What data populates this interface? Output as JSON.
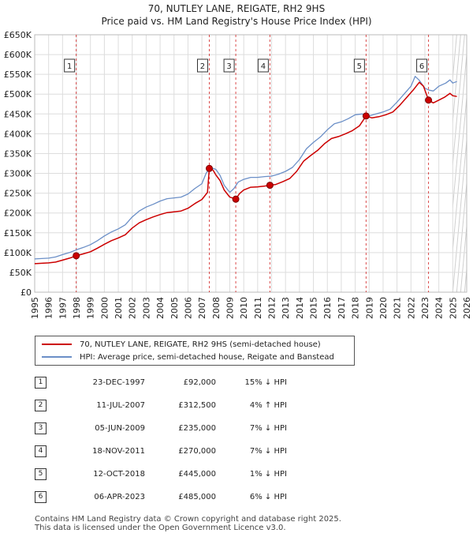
{
  "title_line1": "70, NUTLEY LANE, REIGATE, RH2 9HS",
  "title_line2": "Price paid vs. HM Land Registry's House Price Index (HPI)",
  "legend": {
    "property_label": "70, NUTLEY LANE, REIGATE, RH2 9HS (semi-detached house)",
    "hpi_label": "HPI: Average price, semi-detached house, Reigate and Banstead"
  },
  "colors": {
    "property": "#cc0000",
    "hpi": "#6b8fc7",
    "grid": "#dddddd",
    "marker_line": "#cc0000"
  },
  "sales": [
    {
      "num": "1",
      "date": "23-DEC-1997",
      "price": "£92,000",
      "hpi": "15% ↓ HPI"
    },
    {
      "num": "2",
      "date": "11-JUL-2007",
      "price": "£312,500",
      "hpi": "4% ↑ HPI"
    },
    {
      "num": "3",
      "date": "05-JUN-2009",
      "price": "£235,000",
      "hpi": "7% ↓ HPI"
    },
    {
      "num": "4",
      "date": "18-NOV-2011",
      "price": "£270,000",
      "hpi": "7% ↓ HPI"
    },
    {
      "num": "5",
      "date": "12-OCT-2018",
      "price": "£445,000",
      "hpi": "1% ↓ HPI"
    },
    {
      "num": "6",
      "date": "06-APR-2023",
      "price": "£485,000",
      "hpi": "6% ↓ HPI"
    }
  ],
  "footer": {
    "line1": "Contains HM Land Registry data © Crown copyright and database right 2025.",
    "line2": "This data is licensed under the Open Government Licence v3.0."
  },
  "chart_data": {
    "type": "line",
    "xlim": [
      1995,
      2026
    ],
    "ylim": [
      0,
      650000
    ],
    "y_ticks": [
      0,
      50000,
      100000,
      150000,
      200000,
      250000,
      300000,
      350000,
      400000,
      450000,
      500000,
      550000,
      600000,
      650000
    ],
    "y_tick_labels": [
      "£0",
      "£50K",
      "£100K",
      "£150K",
      "£200K",
      "£250K",
      "£300K",
      "£350K",
      "£400K",
      "£450K",
      "£500K",
      "£550K",
      "£600K",
      "£650K"
    ],
    "x_ticks": [
      "1995",
      "1996",
      "1997",
      "1998",
      "1999",
      "2000",
      "2001",
      "2002",
      "2003",
      "2004",
      "2005",
      "2006",
      "2007",
      "2008",
      "2009",
      "2010",
      "2011",
      "2012",
      "2013",
      "2014",
      "2015",
      "2016",
      "2017",
      "2018",
      "2019",
      "2020",
      "2021",
      "2022",
      "2023",
      "2024",
      "2025",
      "2026"
    ],
    "forecast_start": 2025.0,
    "series": [
      {
        "name": "HPI: Average price, semi-detached house, Reigate and Banstead",
        "x": [
          1995,
          1995.5,
          1996,
          1996.5,
          1997,
          1997.5,
          1998,
          1998.5,
          1999,
          1999.5,
          2000,
          2000.5,
          2001,
          2001.5,
          2002,
          2002.5,
          2003,
          2003.5,
          2004,
          2004.5,
          2005,
          2005.5,
          2006,
          2006.5,
          2007,
          2007.3,
          2007.6,
          2008,
          2008.3,
          2008.6,
          2009,
          2009.3,
          2009.6,
          2010,
          2010.5,
          2011,
          2011.5,
          2012,
          2012.5,
          2013,
          2013.5,
          2014,
          2014.5,
          2015,
          2015.5,
          2016,
          2016.5,
          2017,
          2017.5,
          2018,
          2018.5,
          2019,
          2019.5,
          2020,
          2020.5,
          2021,
          2021.5,
          2022,
          2022.3,
          2022.6,
          2022.9,
          2023,
          2023.3,
          2023.6,
          2024,
          2024.5,
          2024.8,
          2025.0,
          2025.3
        ],
        "values": [
          84000,
          85000,
          86000,
          89000,
          95000,
          100000,
          107000,
          113000,
          120000,
          130000,
          142000,
          152000,
          160000,
          170000,
          190000,
          205000,
          215000,
          222000,
          230000,
          236000,
          238000,
          240000,
          248000,
          262000,
          274000,
          300000,
          315000,
          310000,
          295000,
          270000,
          252000,
          262000,
          278000,
          285000,
          290000,
          290000,
          292000,
          293000,
          298000,
          305000,
          315000,
          335000,
          362000,
          378000,
          392000,
          410000,
          425000,
          430000,
          438000,
          448000,
          450000,
          445000,
          450000,
          455000,
          462000,
          480000,
          500000,
          520000,
          545000,
          535000,
          520000,
          515000,
          510000,
          508000,
          520000,
          528000,
          536000,
          528000,
          532000
        ]
      },
      {
        "name": "70, NUTLEY LANE, REIGATE, RH2 9HS (semi-detached house)",
        "x": [
          1995,
          1995.5,
          1996,
          1996.5,
          1997,
          1997.5,
          1997.98,
          1998.5,
          1999,
          1999.5,
          2000,
          2000.5,
          2001,
          2001.5,
          2002,
          2002.5,
          2003,
          2003.5,
          2004,
          2004.5,
          2005,
          2005.5,
          2006,
          2006.5,
          2007,
          2007.4,
          2007.53,
          2007.8,
          2008,
          2008.3,
          2008.6,
          2009,
          2009.43,
          2009.7,
          2010,
          2010.5,
          2011,
          2011.5,
          2011.88,
          2012.3,
          2012.8,
          2013.3,
          2013.8,
          2014.3,
          2014.8,
          2015.3,
          2015.8,
          2016.3,
          2016.8,
          2017.3,
          2017.8,
          2018.3,
          2018.78,
          2019.2,
          2019.7,
          2020.2,
          2020.7,
          2021.2,
          2021.7,
          2022.2,
          2022.6,
          2022.9,
          2023.26,
          2023.6,
          2024,
          2024.4,
          2024.8,
          2025.0,
          2025.3
        ],
        "values": [
          72000,
          73000,
          74000,
          76000,
          81000,
          86000,
          92000,
          97000,
          102000,
          111000,
          121000,
          130000,
          137000,
          145000,
          162000,
          175000,
          183000,
          190000,
          196000,
          201000,
          203000,
          205000,
          212000,
          224000,
          234000,
          252000,
          312500,
          308000,
          296000,
          282000,
          258000,
          240000,
          235000,
          249000,
          258000,
          265000,
          266000,
          268000,
          270000,
          272000,
          279000,
          287000,
          305000,
          331000,
          345000,
          358000,
          375000,
          388000,
          393000,
          400000,
          408000,
          420000,
          445000,
          440000,
          443000,
          448000,
          455000,
          472000,
          492000,
          512000,
          530000,
          520000,
          485000,
          478000,
          485000,
          492000,
          502000,
          496000,
          494000
        ]
      }
    ],
    "sale_markers": [
      {
        "label": "1",
        "x": 1997.98,
        "y": 92000
      },
      {
        "label": "2",
        "x": 2007.53,
        "y": 312500
      },
      {
        "label": "3",
        "x": 2009.43,
        "y": 235000
      },
      {
        "label": "4",
        "x": 2011.88,
        "y": 270000
      },
      {
        "label": "5",
        "x": 2018.78,
        "y": 445000
      },
      {
        "label": "6",
        "x": 2023.26,
        "y": 485000
      }
    ]
  }
}
